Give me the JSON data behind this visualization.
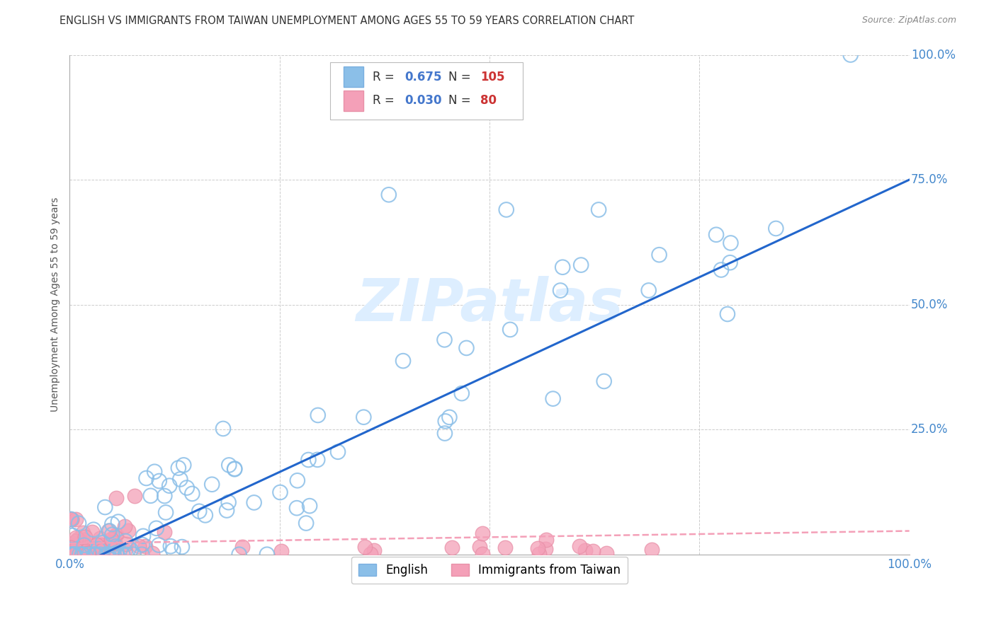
{
  "title": "ENGLISH VS IMMIGRANTS FROM TAIWAN UNEMPLOYMENT AMONG AGES 55 TO 59 YEARS CORRELATION CHART",
  "source": "Source: ZipAtlas.com",
  "ylabel": "Unemployment Among Ages 55 to 59 years",
  "xlim": [
    0,
    1
  ],
  "ylim": [
    0,
    1
  ],
  "english_R": 0.675,
  "english_N": 105,
  "taiwan_R": 0.03,
  "taiwan_N": 80,
  "dot_color_english": "#8bbfe8",
  "dot_edge_english": "#7aafe0",
  "dot_color_taiwan": "#f4a0b8",
  "dot_edge_taiwan": "#e890a8",
  "line_color_english": "#2266cc",
  "line_color_taiwan": "#f4a0b8",
  "background_color": "#ffffff",
  "grid_color": "#cccccc",
  "tick_label_color": "#4488cc",
  "watermark_color": "#ddeeff",
  "title_color": "#333333",
  "source_color": "#888888",
  "legend_R_color": "#4477cc",
  "legend_N_color": "#cc3333",
  "eng_line_slope": 0.78,
  "eng_line_intercept": -0.03,
  "tai_line_slope": 0.025,
  "tai_line_intercept": 0.022
}
